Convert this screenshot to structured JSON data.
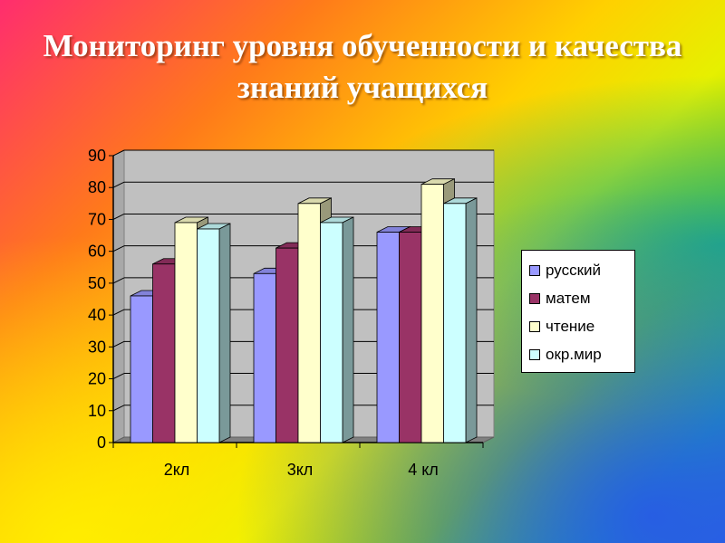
{
  "title": "Мониторинг уровня обученности и качества знаний учащихся",
  "chart_data": {
    "type": "bar",
    "categories": [
      "2кл",
      "3кл",
      "4 кл"
    ],
    "series": [
      {
        "name": "русский",
        "values": [
          46,
          53,
          66
        ],
        "color": "#9999ff"
      },
      {
        "name": "матем",
        "values": [
          56,
          61,
          66
        ],
        "color": "#993366"
      },
      {
        "name": "чтение",
        "values": [
          69,
          75,
          81
        ],
        "color": "#ffffcc"
      },
      {
        "name": "окр.мир",
        "values": [
          67,
          69,
          75
        ],
        "color": "#ccffff"
      }
    ],
    "yticks": [
      0,
      10,
      20,
      30,
      40,
      50,
      60,
      70,
      80,
      90
    ],
    "ylim": [
      0,
      90
    ],
    "grid": true,
    "legend_position": "right",
    "plot_background": "#c0c0c0"
  }
}
